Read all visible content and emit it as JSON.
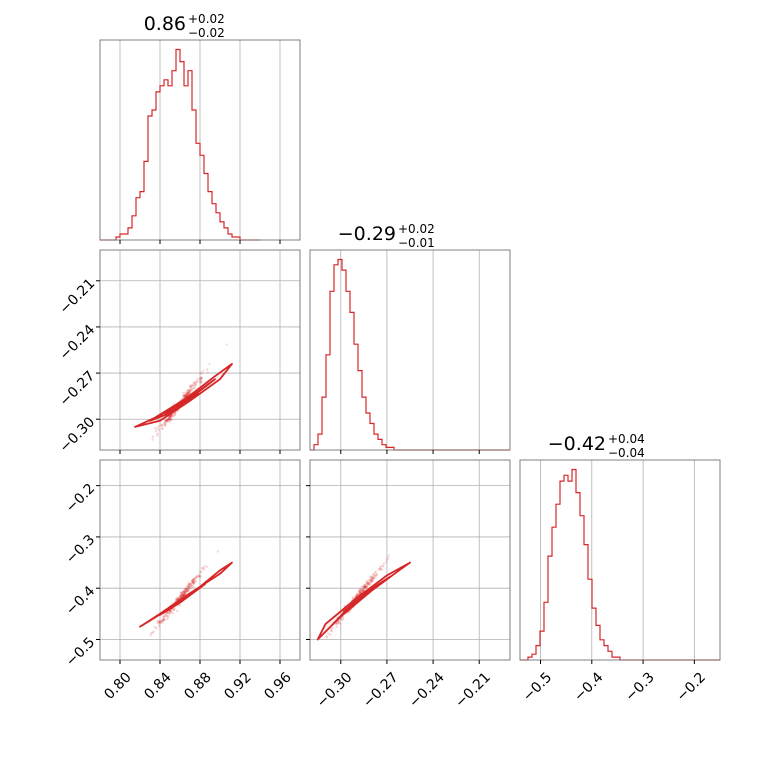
{
  "chart_data": {
    "type": "corner",
    "color": "#d62728",
    "grid": true,
    "panels": [
      {
        "id": "hist-0",
        "type": "histogram",
        "title": {
          "value": "0.86",
          "plus": "+0.02",
          "minus": "−0.02"
        },
        "xlim": [
          0.78,
          0.98
        ],
        "bin_edges_start": 0.78,
        "bin_width": 0.004,
        "counts": [
          0,
          0,
          0,
          0,
          1,
          2,
          2,
          4,
          8,
          14,
          16,
          26,
          41,
          43,
          49,
          51,
          53,
          51,
          56,
          63,
          59,
          51,
          56,
          43,
          32,
          28,
          22,
          16,
          12,
          9,
          6,
          4,
          2,
          1,
          1,
          0,
          0,
          0,
          0,
          0
        ]
      },
      {
        "id": "hist-1",
        "type": "histogram",
        "title": {
          "value": "−0.29",
          "plus": "+0.02",
          "minus": "−0.01"
        },
        "xlim": [
          -0.32,
          -0.19
        ],
        "bin_edges_start": -0.32,
        "bin_width": 0.0026,
        "counts": [
          0,
          2,
          6,
          20,
          36,
          60,
          70,
          72,
          68,
          60,
          52,
          40,
          30,
          20,
          14,
          10,
          6,
          4,
          2,
          1,
          1,
          0,
          0,
          0,
          0,
          0,
          0,
          0,
          0,
          0,
          0,
          0,
          0,
          0,
          0,
          0,
          0,
          0,
          0,
          0,
          0,
          0,
          0,
          0,
          0,
          0,
          0,
          0,
          0,
          0
        ]
      },
      {
        "id": "hist-2",
        "type": "histogram",
        "title": {
          "value": "−0.42",
          "plus": "+0.04",
          "minus": "−0.04"
        },
        "xlim": [
          -0.54,
          -0.15
        ],
        "bin_edges_start": -0.54,
        "bin_width": 0.0078,
        "counts": [
          0,
          0,
          1,
          2,
          5,
          10,
          20,
          36,
          46,
          54,
          62,
          64,
          62,
          66,
          58,
          50,
          40,
          28,
          18,
          12,
          7,
          5,
          3,
          1,
          1,
          0,
          0,
          0,
          0,
          0,
          0,
          0,
          0,
          0,
          0,
          0,
          0,
          0,
          0,
          0,
          0,
          0,
          0,
          0,
          0,
          0,
          0,
          0,
          0,
          0
        ]
      },
      {
        "id": "scatter-1-0",
        "type": "2d-density",
        "xlim": [
          0.78,
          0.98
        ],
        "ylim": [
          -0.32,
          -0.19
        ],
        "center": [
          0.86,
          -0.29
        ],
        "contours": [
          [
            [
              0.815,
              -0.305
            ],
            [
              0.84,
              -0.301
            ],
            [
              0.87,
              -0.288
            ],
            [
              0.9,
              -0.274
            ],
            [
              0.912,
              -0.264
            ],
            [
              0.895,
              -0.272
            ],
            [
              0.865,
              -0.287
            ],
            [
              0.835,
              -0.299
            ],
            [
              0.815,
              -0.305
            ]
          ],
          [
            [
              0.83,
              -0.301
            ],
            [
              0.85,
              -0.296
            ],
            [
              0.875,
              -0.284
            ],
            [
              0.895,
              -0.274
            ],
            [
              0.88,
              -0.281
            ],
            [
              0.855,
              -0.292
            ],
            [
              0.83,
              -0.301
            ]
          ],
          [
            [
              0.845,
              -0.297
            ],
            [
              0.86,
              -0.292
            ],
            [
              0.878,
              -0.283
            ],
            [
              0.865,
              -0.288
            ],
            [
              0.845,
              -0.297
            ]
          ]
        ]
      },
      {
        "id": "scatter-2-0",
        "type": "2d-density",
        "xlim": [
          0.78,
          0.98
        ],
        "ylim": [
          -0.54,
          -0.15
        ],
        "center": [
          0.86,
          -0.42
        ],
        "contours": [
          [
            [
              0.82,
              -0.475
            ],
            [
              0.845,
              -0.445
            ],
            [
              0.875,
              -0.405
            ],
            [
              0.9,
              -0.365
            ],
            [
              0.912,
              -0.35
            ],
            [
              0.9,
              -0.372
            ],
            [
              0.87,
              -0.41
            ],
            [
              0.84,
              -0.45
            ],
            [
              0.82,
              -0.475
            ]
          ],
          [
            [
              0.84,
              -0.452
            ],
            [
              0.86,
              -0.428
            ],
            [
              0.885,
              -0.392
            ],
            [
              0.87,
              -0.41
            ],
            [
              0.852,
              -0.438
            ],
            [
              0.84,
              -0.452
            ]
          ]
        ]
      },
      {
        "id": "scatter-2-1",
        "type": "2d-density",
        "xlim": [
          -0.32,
          -0.19
        ],
        "ylim": [
          -0.54,
          -0.15
        ],
        "center": [
          -0.29,
          -0.42
        ],
        "contours": [
          [
            [
              -0.315,
              -0.5
            ],
            [
              -0.31,
              -0.47
            ],
            [
              -0.29,
              -0.42
            ],
            [
              -0.27,
              -0.375
            ],
            [
              -0.255,
              -0.35
            ],
            [
              -0.262,
              -0.365
            ],
            [
              -0.28,
              -0.405
            ],
            [
              -0.3,
              -0.455
            ],
            [
              -0.315,
              -0.5
            ]
          ],
          [
            [
              -0.305,
              -0.47
            ],
            [
              -0.292,
              -0.432
            ],
            [
              -0.278,
              -0.397
            ],
            [
              -0.268,
              -0.378
            ],
            [
              -0.282,
              -0.405
            ],
            [
              -0.298,
              -0.448
            ],
            [
              -0.305,
              -0.47
            ]
          ],
          [
            [
              -0.298,
              -0.445
            ],
            [
              -0.288,
              -0.42
            ],
            [
              -0.28,
              -0.402
            ],
            [
              -0.29,
              -0.425
            ],
            [
              -0.298,
              -0.445
            ]
          ]
        ]
      }
    ],
    "axes": {
      "x0": {
        "ticks": [
          0.8,
          0.84,
          0.88,
          0.92,
          0.96
        ],
        "labels": [
          "0.80",
          "0.84",
          "0.88",
          "0.92",
          "0.96"
        ]
      },
      "x1": {
        "ticks": [
          -0.3,
          -0.27,
          -0.24,
          -0.21
        ],
        "labels": [
          "−0.30",
          "−0.27",
          "−0.24",
          "−0.21"
        ]
      },
      "x2": {
        "ticks": [
          -0.5,
          -0.4,
          -0.3,
          -0.2
        ],
        "labels": [
          "−0.5",
          "−0.4",
          "−0.3",
          "−0.2"
        ]
      },
      "y1": {
        "ticks": [
          -0.21,
          -0.24,
          -0.27,
          -0.3
        ],
        "labels": [
          "−0.21",
          "−0.24",
          "−0.27",
          "−0.30"
        ]
      },
      "y2": {
        "ticks": [
          -0.2,
          -0.3,
          -0.4,
          -0.5
        ],
        "labels": [
          "−0.2",
          "−0.3",
          "−0.4",
          "−0.5"
        ]
      }
    }
  }
}
